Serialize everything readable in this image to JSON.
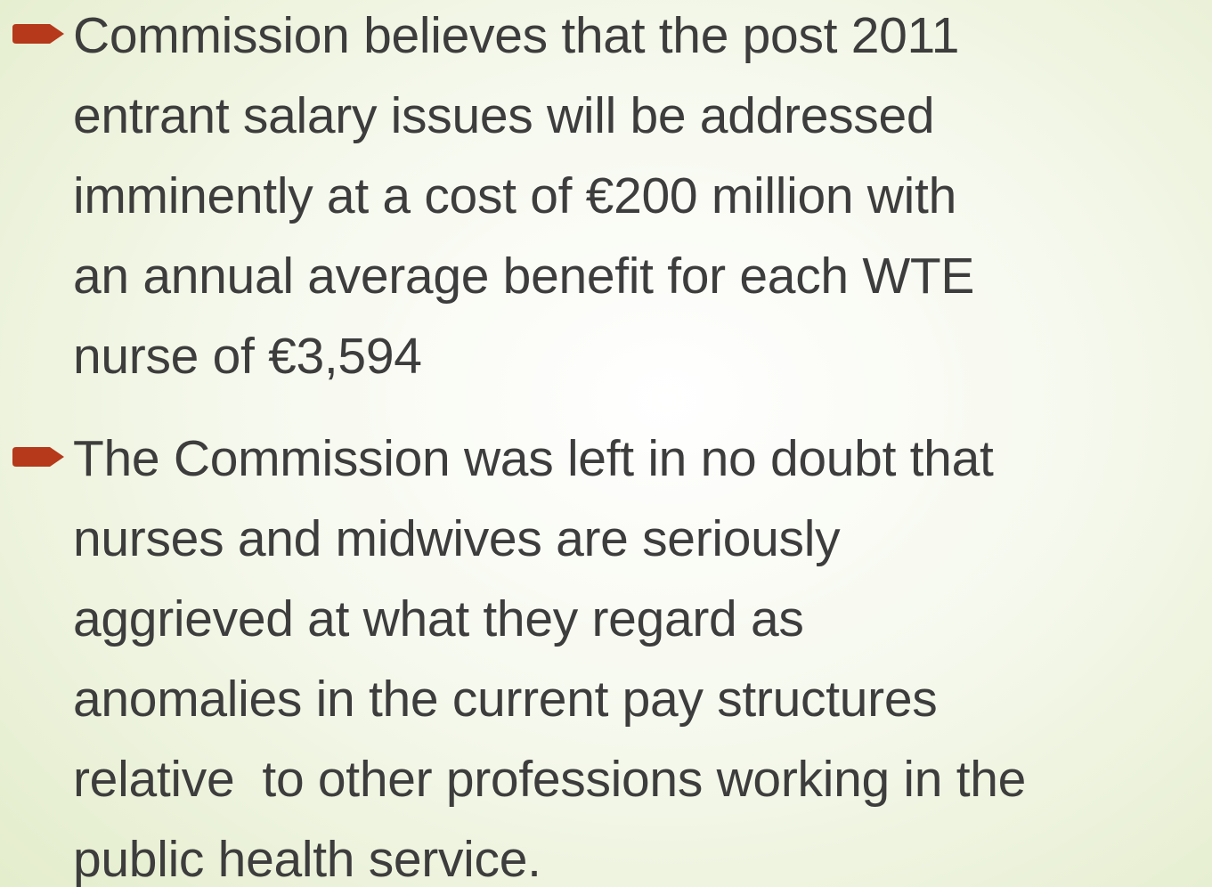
{
  "bullets": [
    {
      "lines": [
        "Commission believes that the post 2011",
        "entrant salary issues will be addressed",
        "imminently at a cost of €200 million with",
        "an annual average benefit for each WTE",
        "nurse of €3,594"
      ]
    },
    {
      "lines": [
        "The Commission was left in no doubt that",
        "nurses and midwives are seriously",
        "aggrieved at what they regard as",
        "anomalies in the current pay structures",
        "relative  to other professions working in the",
        "public health service."
      ]
    }
  ]
}
